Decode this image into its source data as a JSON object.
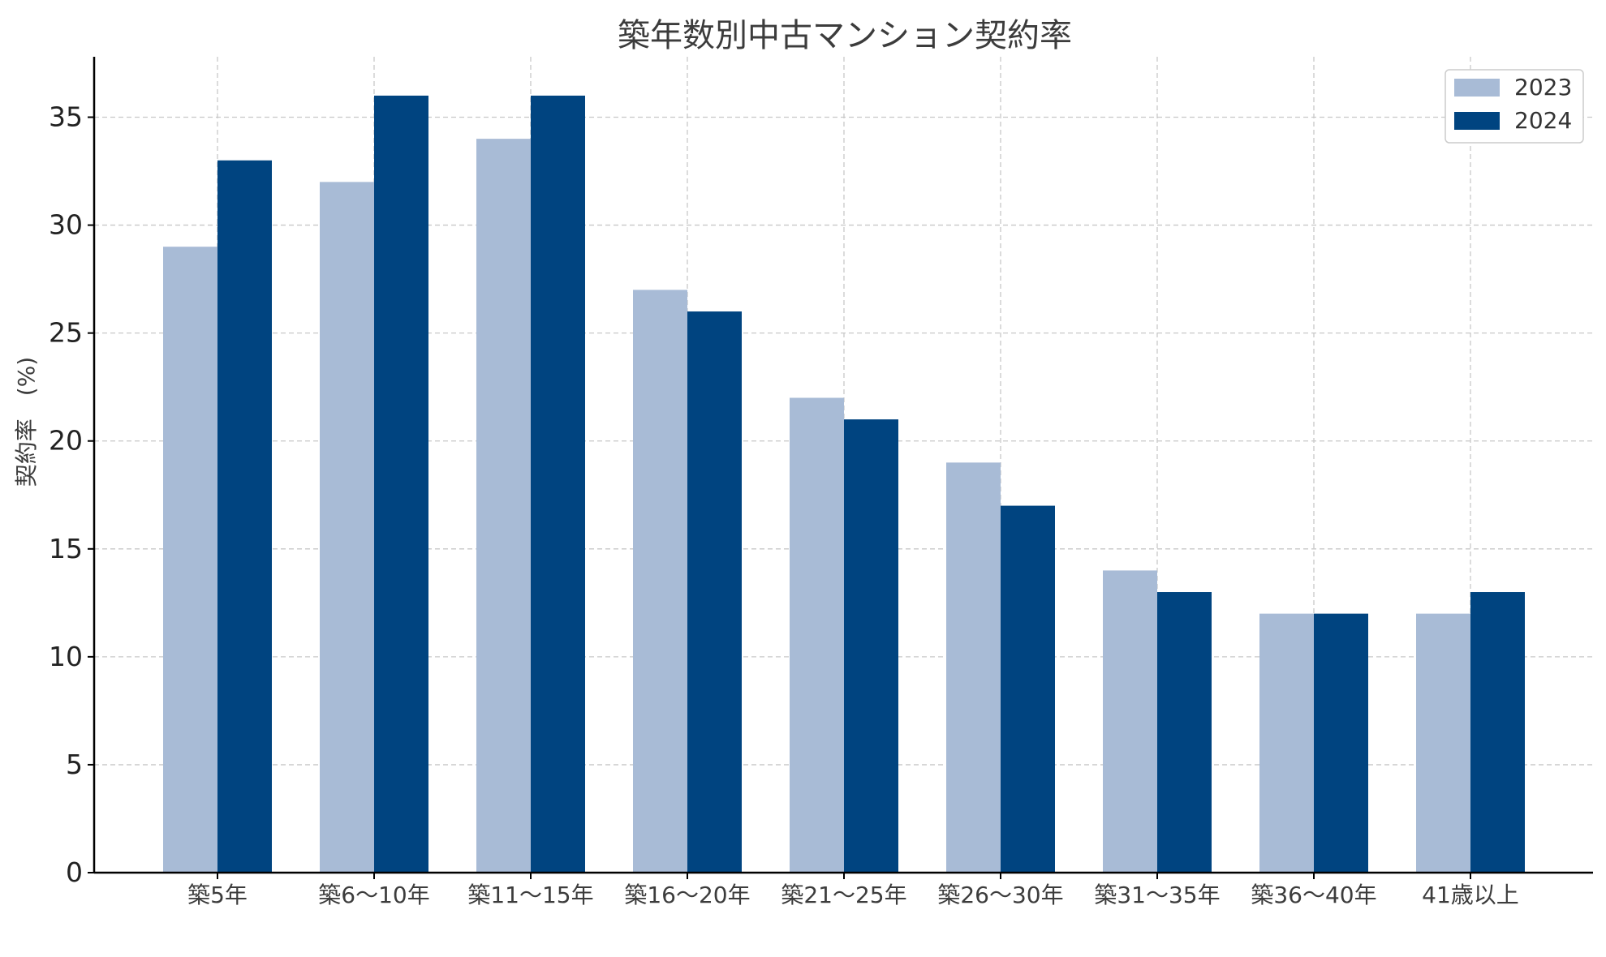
{
  "chart_data": {
    "type": "bar",
    "title": "築年数別中古マンション契約率",
    "xlabel": "",
    "ylabel": "契約率　(%)",
    "categories": [
      "築5年",
      "築6〜10年",
      "築11〜15年",
      "築16〜20年",
      "築21〜25年",
      "築26〜30年",
      "築31〜35年",
      "築36〜40年",
      "41歳以上"
    ],
    "series": [
      {
        "name": "2023",
        "color": "#a8bbd6",
        "values": [
          29,
          32,
          34,
          27,
          22,
          19,
          14,
          12,
          12
        ]
      },
      {
        "name": "2024",
        "color": "#004480",
        "values": [
          33,
          36,
          36,
          26,
          21,
          17,
          13,
          12,
          13
        ]
      }
    ],
    "ylim": [
      0,
      37.8
    ],
    "yticks": [
      0,
      5,
      10,
      15,
      20,
      25,
      30,
      35
    ],
    "grid": true,
    "legend_position": "top-right"
  }
}
